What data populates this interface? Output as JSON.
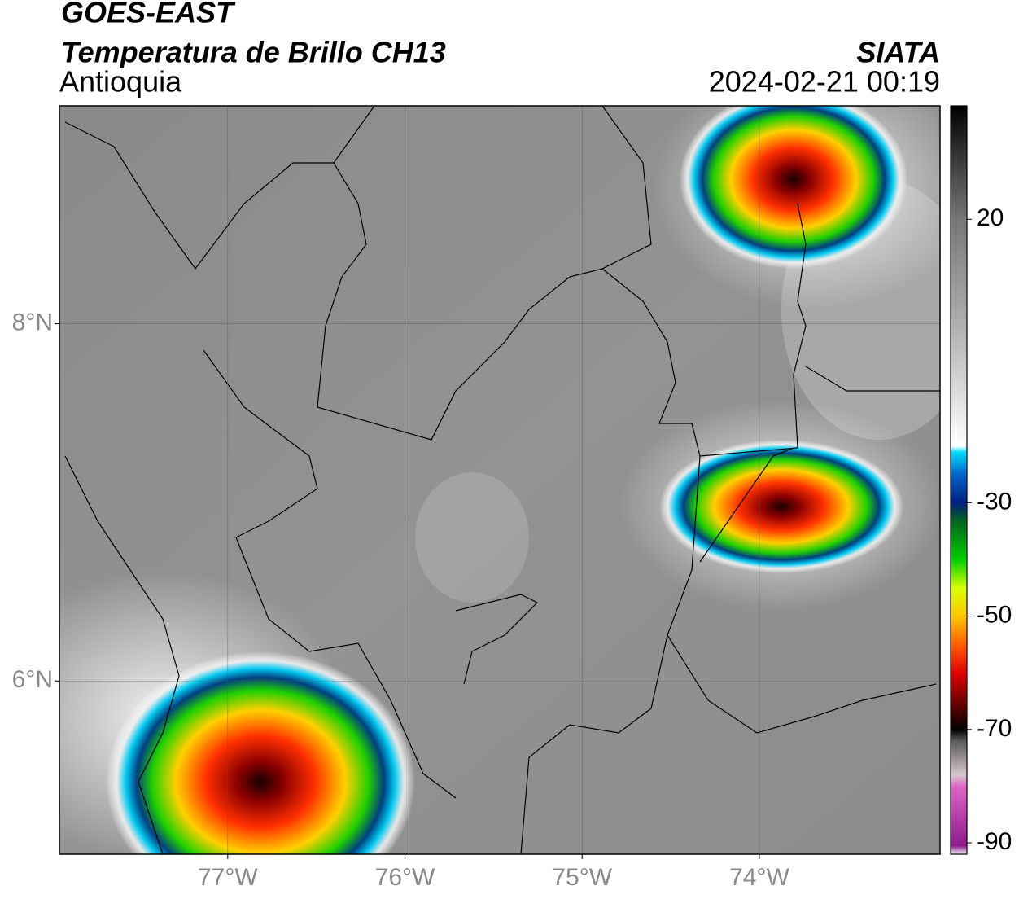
{
  "header": {
    "title": "GOES-EAST",
    "subtitle": "Temperatura de Brillo CH13",
    "region": "Antioquia",
    "source": "SIATA",
    "timestamp": "2024-02-21 00:19"
  },
  "map": {
    "xlim": [
      -77.95,
      -72.98
    ],
    "ylim": [
      5.03,
      9.22
    ],
    "xticks": [
      {
        "value": -77,
        "label": "77°W"
      },
      {
        "value": -76,
        "label": "76°W"
      },
      {
        "value": -75,
        "label": "75°W"
      },
      {
        "value": -74,
        "label": "74°W"
      }
    ],
    "yticks": [
      {
        "value": 8,
        "label": "8°N"
      },
      {
        "value": 6,
        "label": "6°N"
      }
    ],
    "grid": true
  },
  "colorbar": {
    "lim": [
      -92,
      40
    ],
    "ticks": [
      20,
      -30,
      -50,
      -70,
      -90
    ],
    "stops": [
      {
        "value": -92,
        "color": "#ffffff"
      },
      {
        "value": -90.5,
        "color": "#8e1a8e"
      },
      {
        "value": -80,
        "color": "#e066c8"
      },
      {
        "value": -78,
        "color": "#d8c8d0"
      },
      {
        "value": -72,
        "color": "#5a5a5a"
      },
      {
        "value": -70,
        "color": "#000000"
      },
      {
        "value": -66,
        "color": "#5a0000"
      },
      {
        "value": -60,
        "color": "#e00000"
      },
      {
        "value": -55,
        "color": "#ff6000"
      },
      {
        "value": -50,
        "color": "#ffc800"
      },
      {
        "value": -45,
        "color": "#d8ff00"
      },
      {
        "value": -40,
        "color": "#00d000"
      },
      {
        "value": -33,
        "color": "#006020"
      },
      {
        "value": -30,
        "color": "#002080"
      },
      {
        "value": -25,
        "color": "#0064c8"
      },
      {
        "value": -21,
        "color": "#00e0ff"
      },
      {
        "value": -20,
        "color": "#ffffff"
      },
      {
        "value": 0,
        "color": "#b4b4b4"
      },
      {
        "value": 20,
        "color": "#787878"
      },
      {
        "value": 40,
        "color": "#000000"
      }
    ]
  }
}
